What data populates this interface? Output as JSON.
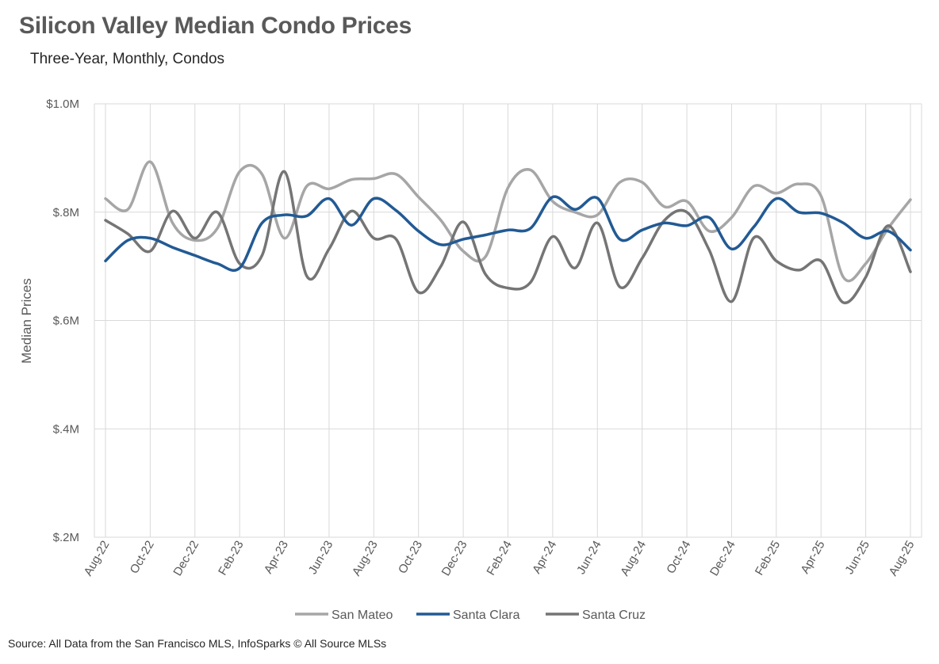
{
  "source": "Source: All Data from the San Francisco MLS, InfoSparks © All Source MLSs",
  "chart_data": {
    "type": "line",
    "title": "Silicon Valley Median Condo Prices",
    "subtitle": "Three-Year, Monthly, Condos",
    "xlabel": "",
    "ylabel": "Median Prices",
    "ylim": [
      200000,
      1000000
    ],
    "y_ticks": [
      200000,
      400000,
      600000,
      800000,
      1000000
    ],
    "y_tick_labels": [
      "$.2M",
      "$.4M",
      "$.6M",
      "$.8M",
      "$1.0M"
    ],
    "x": [
      "Aug-22",
      "Sep-22",
      "Oct-22",
      "Nov-22",
      "Dec-22",
      "Jan-23",
      "Feb-23",
      "Mar-23",
      "Apr-23",
      "May-23",
      "Jun-23",
      "Jul-23",
      "Aug-23",
      "Sep-23",
      "Oct-23",
      "Nov-23",
      "Dec-23",
      "Jan-24",
      "Feb-24",
      "Mar-24",
      "Apr-24",
      "May-24",
      "Jun-24",
      "Jul-24",
      "Aug-24",
      "Sep-24",
      "Oct-24",
      "Nov-24",
      "Dec-24",
      "Jan-25",
      "Feb-25",
      "Mar-25",
      "Apr-25",
      "May-25",
      "Jun-25",
      "Jul-25",
      "Aug-25"
    ],
    "x_tick_labels": [
      "Aug-22",
      "Oct-22",
      "Dec-22",
      "Feb-23",
      "Apr-23",
      "Jun-23",
      "Aug-23",
      "Oct-23",
      "Dec-23",
      "Feb-24",
      "Apr-24",
      "Jun-24",
      "Aug-24",
      "Oct-24",
      "Dec-24",
      "Feb-25",
      "Apr-25",
      "Jun-25",
      "Aug-25"
    ],
    "grid": true,
    "legend_position": "bottom",
    "series": [
      {
        "name": "San Mateo",
        "color": "#a6a6a6",
        "values": [
          825000,
          805000,
          893000,
          780000,
          748000,
          770000,
          875000,
          870000,
          752000,
          848000,
          843000,
          860000,
          862000,
          870000,
          828000,
          785000,
          728000,
          718000,
          845000,
          878000,
          820000,
          800000,
          795000,
          855000,
          855000,
          810000,
          820000,
          765000,
          790000,
          848000,
          835000,
          852000,
          830000,
          680000,
          705000,
          770000,
          823000
        ]
      },
      {
        "name": "Santa Clara",
        "color": "#225a94",
        "values": [
          710000,
          748000,
          752000,
          735000,
          720000,
          705000,
          697000,
          780000,
          795000,
          793000,
          825000,
          776000,
          825000,
          803000,
          765000,
          740000,
          750000,
          758000,
          767000,
          770000,
          828000,
          805000,
          826000,
          750000,
          767000,
          780000,
          775000,
          790000,
          732000,
          773000,
          825000,
          800000,
          798000,
          780000,
          752000,
          765000,
          730000
        ]
      },
      {
        "name": "Santa Cruz",
        "color": "#757575",
        "values": [
          785000,
          760000,
          728000,
          802000,
          752000,
          800000,
          705000,
          720000,
          875000,
          682000,
          732000,
          802000,
          752000,
          750000,
          652000,
          700000,
          782000,
          685000,
          660000,
          670000,
          755000,
          697000,
          780000,
          662000,
          715000,
          785000,
          800000,
          730000,
          635000,
          753000,
          710000,
          693000,
          710000,
          633000,
          680000,
          775000,
          690000
        ]
      }
    ]
  }
}
